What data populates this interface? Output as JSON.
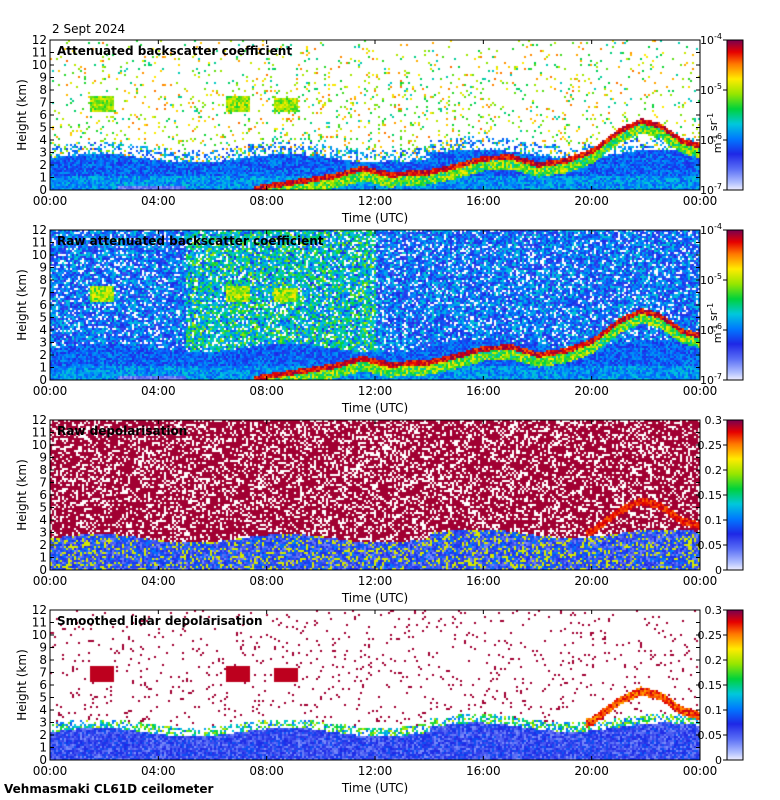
{
  "figure": {
    "date": "2 Sept 2024",
    "footer": "Vehmasmaki CL61D ceilometer"
  },
  "chart_data": [
    {
      "type": "heatmap",
      "title": "Attenuated backscatter coefficient",
      "xlabel": "Time (UTC)",
      "ylabel": "Height (km)",
      "xticks": [
        "00:00",
        "04:00",
        "08:00",
        "12:00",
        "16:00",
        "20:00",
        "00:00"
      ],
      "xlim_hours": [
        0,
        24
      ],
      "ylim": [
        0,
        12
      ],
      "yticks": [
        0,
        1,
        2,
        3,
        4,
        5,
        6,
        7,
        8,
        9,
        10,
        11,
        12
      ],
      "colorbar": {
        "scale": "log",
        "range": [
          1e-07,
          0.0001
        ],
        "tick_labels": [
          "10-7",
          "10-6",
          "10-5",
          "10-4"
        ],
        "unit": "m-1 sr-1"
      },
      "field": "clean"
    },
    {
      "type": "heatmap",
      "title": "Raw attenuated backscatter coefficient",
      "xlabel": "Time (UTC)",
      "ylabel": "Height (km)",
      "xticks": [
        "00:00",
        "04:00",
        "08:00",
        "12:00",
        "16:00",
        "20:00",
        "00:00"
      ],
      "xlim_hours": [
        0,
        24
      ],
      "ylim": [
        0,
        12
      ],
      "yticks": [
        0,
        1,
        2,
        3,
        4,
        5,
        6,
        7,
        8,
        9,
        10,
        11,
        12
      ],
      "colorbar": {
        "scale": "log",
        "range": [
          1e-07,
          0.0001
        ],
        "tick_labels": [
          "10-7",
          "10-6",
          "10-5",
          "10-4"
        ],
        "unit": "m-1 sr-1"
      },
      "field": "raw"
    },
    {
      "type": "heatmap",
      "title": "Raw depolarisation",
      "xlabel": "Time (UTC)",
      "ylabel": "Height (km)",
      "xticks": [
        "00:00",
        "04:00",
        "08:00",
        "12:00",
        "16:00",
        "20:00",
        "00:00"
      ],
      "xlim_hours": [
        0,
        24
      ],
      "ylim": [
        0,
        12
      ],
      "yticks": [
        0,
        1,
        2,
        3,
        4,
        5,
        6,
        7,
        8,
        9,
        10,
        11,
        12
      ],
      "colorbar": {
        "scale": "linear",
        "range": [
          0,
          0.3
        ],
        "tick_labels": [
          "0",
          "0.05",
          "0.1",
          "0.15",
          "0.2",
          "0.25",
          "0.3"
        ],
        "unit": ""
      },
      "field": "depol_raw"
    },
    {
      "type": "heatmap",
      "title": "Smoothed lidar depolarisation",
      "xlabel": "Time (UTC)",
      "ylabel": "Height (km)",
      "xticks": [
        "00:00",
        "04:00",
        "08:00",
        "12:00",
        "16:00",
        "20:00",
        "00:00"
      ],
      "xlim_hours": [
        0,
        24
      ],
      "ylim": [
        0,
        12
      ],
      "yticks": [
        0,
        1,
        2,
        3,
        4,
        5,
        6,
        7,
        8,
        9,
        10,
        11,
        12
      ],
      "colorbar": {
        "scale": "linear",
        "range": [
          0,
          0.3
        ],
        "tick_labels": [
          "0",
          "0.05",
          "0.1",
          "0.15",
          "0.2",
          "0.25",
          "0.3"
        ],
        "unit": ""
      },
      "field": "depol_smooth"
    }
  ],
  "features": {
    "cloud_layer_km": [
      {
        "t": 7.5,
        "h": 0.2
      },
      {
        "t": 9,
        "h": 0.7
      },
      {
        "t": 10.5,
        "h": 1.2
      },
      {
        "t": 11.5,
        "h": 1.8
      },
      {
        "t": 12.5,
        "h": 1.3
      },
      {
        "t": 14,
        "h": 1.5
      },
      {
        "t": 15,
        "h": 2.0
      },
      {
        "t": 16,
        "h": 2.6
      },
      {
        "t": 17,
        "h": 2.7
      },
      {
        "t": 18,
        "h": 2.1
      },
      {
        "t": 19,
        "h": 2.4
      },
      {
        "t": 20,
        "h": 3.2
      },
      {
        "t": 21,
        "h": 4.8
      },
      {
        "t": 21.8,
        "h": 5.6
      },
      {
        "t": 22.5,
        "h": 5.2
      },
      {
        "t": 23.3,
        "h": 4.0
      },
      {
        "t": 24,
        "h": 3.6
      }
    ],
    "cloud_patches": [
      {
        "t": 1.9,
        "h": 7.0
      },
      {
        "t": 6.9,
        "h": 7.0
      },
      {
        "t": 8.7,
        "h": 6.9
      }
    ]
  }
}
